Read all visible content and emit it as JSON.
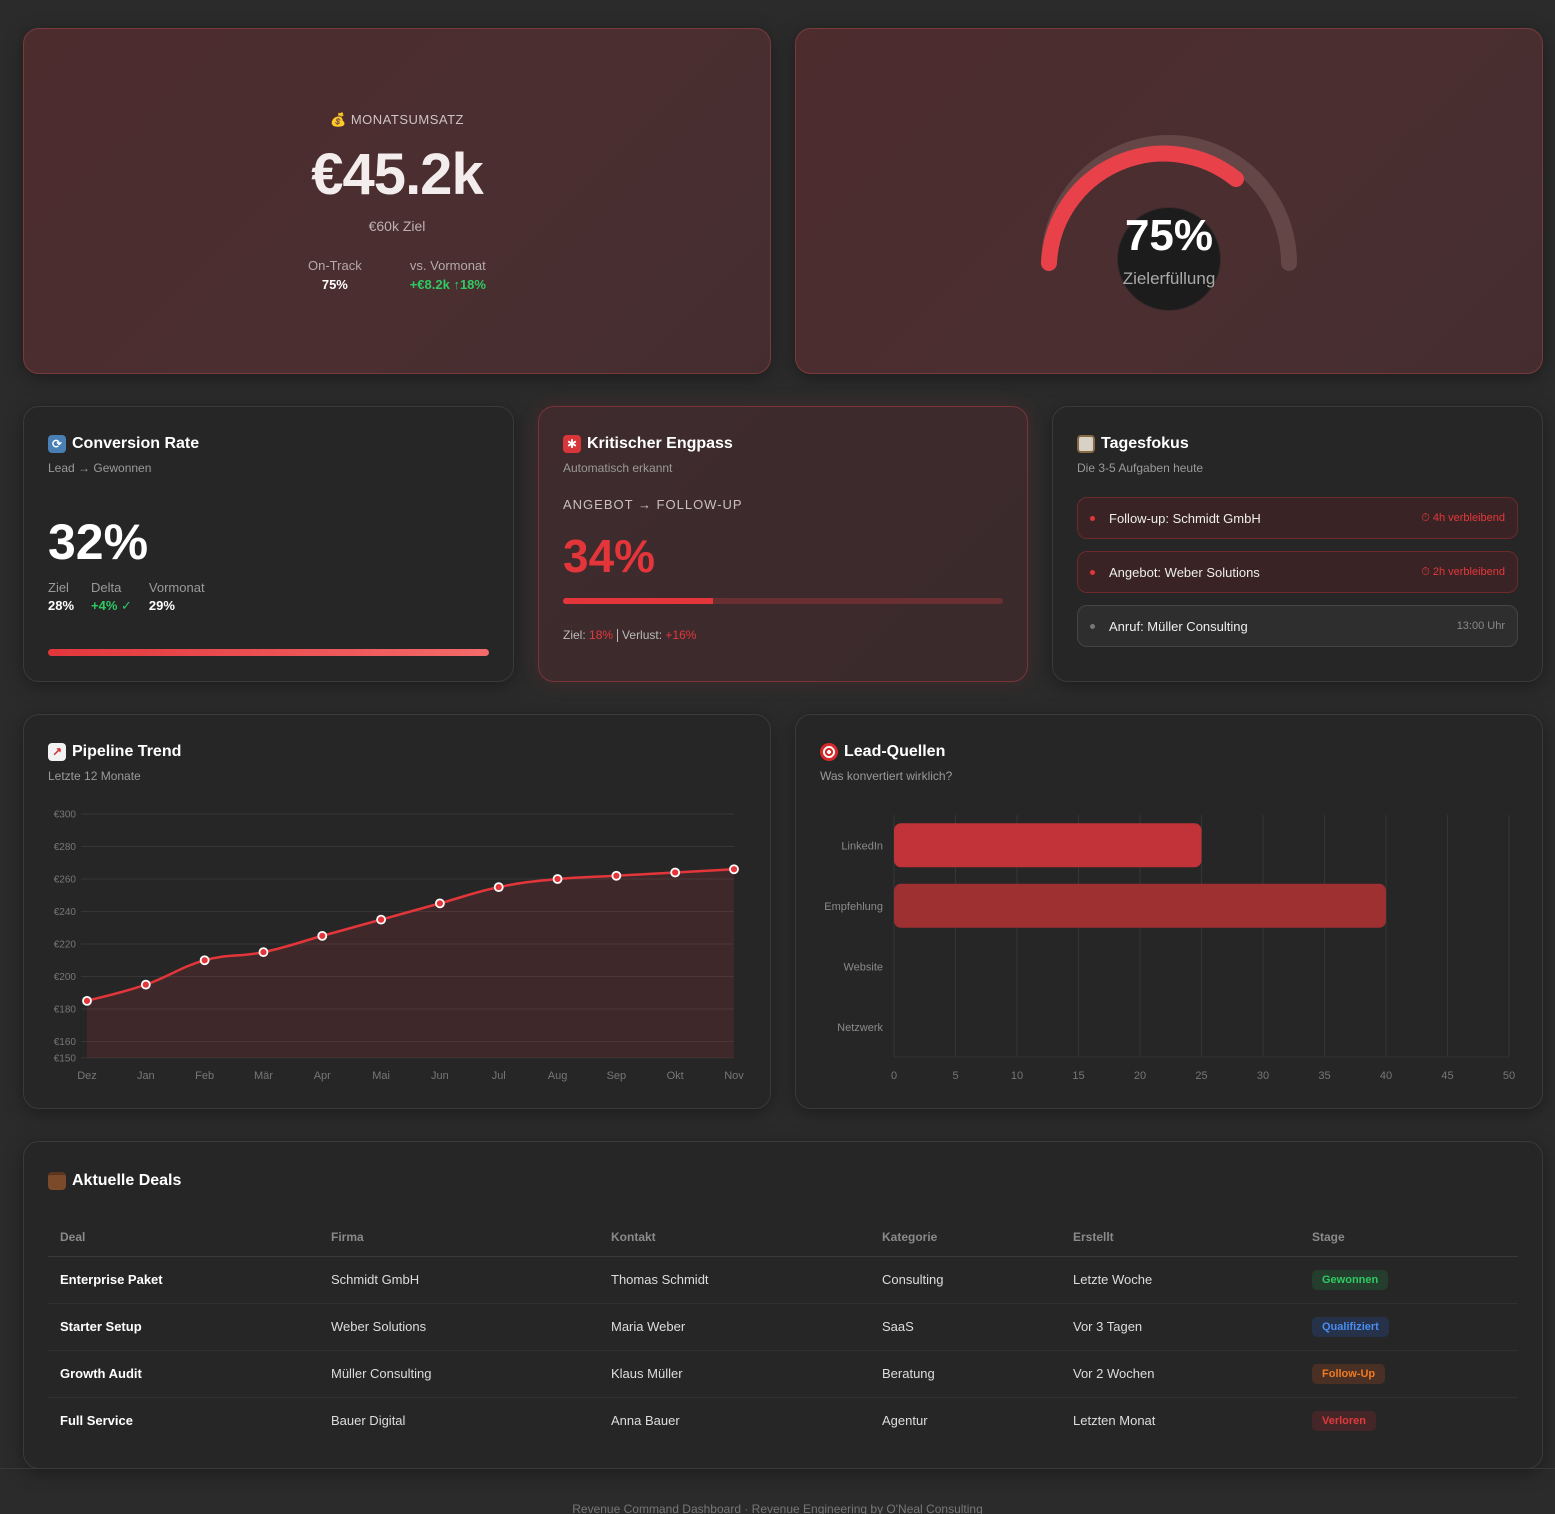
{
  "revenue": {
    "icon": "money-bag-icon",
    "label": "MONATSUMSATZ",
    "value": "€45.2k",
    "goal": "€60k Ziel",
    "stats": [
      {
        "label": "On-Track",
        "value": "75%"
      },
      {
        "label": "vs. Vormonat",
        "value": "+€8.2k ↑18%"
      }
    ]
  },
  "gauge": {
    "value": "75%",
    "label": "Zielerfüllung",
    "percent": 75
  },
  "conversion": {
    "title": "Conversion Rate",
    "subtitle": "Lead → Gewonnen",
    "value": "32%",
    "stats": [
      {
        "label": "Ziel",
        "value": "28%"
      },
      {
        "label": "Delta",
        "value": "+4% ✓"
      },
      {
        "label": "Vormonat",
        "value": "29%"
      }
    ]
  },
  "bottleneck": {
    "title": "Kritischer Engpass",
    "subtitle": "Automatisch erkannt",
    "flow": "ANGEBOT → FOLLOW-UP",
    "value": "34%",
    "progress_percent": 34,
    "goal_label": "Ziel:",
    "goal_value": "18%",
    "loss_label": "Verlust:",
    "loss_value": "+16%"
  },
  "focus": {
    "title": "Tagesfokus",
    "subtitle": "Die 3-5 Aufgaben heute",
    "tasks": [
      {
        "text": "Follow-up: Schmidt GmbH",
        "time": "⏱ 4h verbleibend",
        "urgent": true
      },
      {
        "text": "Angebot: Weber Solutions",
        "time": "⏱ 2h verbleibend",
        "urgent": true
      },
      {
        "text": "Anruf: Müller Consulting",
        "time": "13:00 Uhr",
        "urgent": false
      }
    ]
  },
  "pipeline": {
    "title": "Pipeline Trend",
    "subtitle": "Letzte 12 Monate"
  },
  "leads": {
    "title": "Lead-Quellen",
    "subtitle": "Was konvertiert wirklich?"
  },
  "chart_data": [
    {
      "type": "line",
      "title": "Pipeline Trend",
      "categories": [
        "Dez",
        "Jan",
        "Feb",
        "Mär",
        "Apr",
        "Mai",
        "Jun",
        "Jul",
        "Aug",
        "Sep",
        "Okt",
        "Nov"
      ],
      "series": [
        {
          "name": "Pipeline",
          "values": [
            185,
            195,
            210,
            215,
            225,
            235,
            245,
            255,
            260,
            262,
            264,
            266
          ]
        }
      ],
      "yticks": [
        "€150",
        "€160",
        "€180",
        "€200",
        "€220",
        "€240",
        "€260",
        "€280",
        "€300"
      ],
      "ylim": [
        150,
        300
      ],
      "fill": true,
      "grid": true,
      "color": "#e4363a"
    },
    {
      "type": "bar",
      "orientation": "horizontal",
      "title": "Lead-Quellen",
      "categories": [
        "LinkedIn",
        "Empfehlung",
        "Website",
        "Netzwerk"
      ],
      "values": [
        25,
        40,
        0,
        0
      ],
      "xticks": [
        "0",
        "5",
        "10",
        "15",
        "20",
        "25",
        "30",
        "35",
        "40",
        "45",
        "50"
      ],
      "xlim": [
        0,
        50
      ],
      "grid": true,
      "colors": [
        "#c23339",
        "#9e3032"
      ]
    }
  ],
  "deals": {
    "title": "Aktuelle Deals",
    "columns": [
      "Deal",
      "Firma",
      "Kontakt",
      "Kategorie",
      "Erstellt",
      "Stage"
    ],
    "rows": [
      {
        "deal": "Enterprise Paket",
        "firma": "Schmidt GmbH",
        "kontakt": "Thomas Schmidt",
        "kategorie": "Consulting",
        "erstellt": "Letzte Woche",
        "stage": "Gewonnen"
      },
      {
        "deal": "Starter Setup",
        "firma": "Weber Solutions",
        "kontakt": "Maria Weber",
        "kategorie": "SaaS",
        "erstellt": "Vor 3 Tagen",
        "stage": "Qualifiziert"
      },
      {
        "deal": "Growth Audit",
        "firma": "Müller Consulting",
        "kontakt": "Klaus Müller",
        "kategorie": "Beratung",
        "erstellt": "Vor 2 Wochen",
        "stage": "Follow-Up"
      },
      {
        "deal": "Full Service",
        "firma": "Bauer Digital",
        "kontakt": "Anna Bauer",
        "kategorie": "Agentur",
        "erstellt": "Letzten Monat",
        "stage": "Verloren"
      }
    ]
  },
  "stage_colors": {
    "Gewonnen": {
      "fg": "#2fca64",
      "bg": "#243d2c"
    },
    "Qualifiziert": {
      "fg": "#4a8cf0",
      "bg": "#25324a"
    },
    "Follow-Up": {
      "fg": "#f07a22",
      "bg": "#4a3024"
    },
    "Verloren": {
      "fg": "#e0393c",
      "bg": "#452628"
    }
  },
  "footer": "Revenue Command Dashboard · Revenue Engineering by O'Neal Consulting"
}
